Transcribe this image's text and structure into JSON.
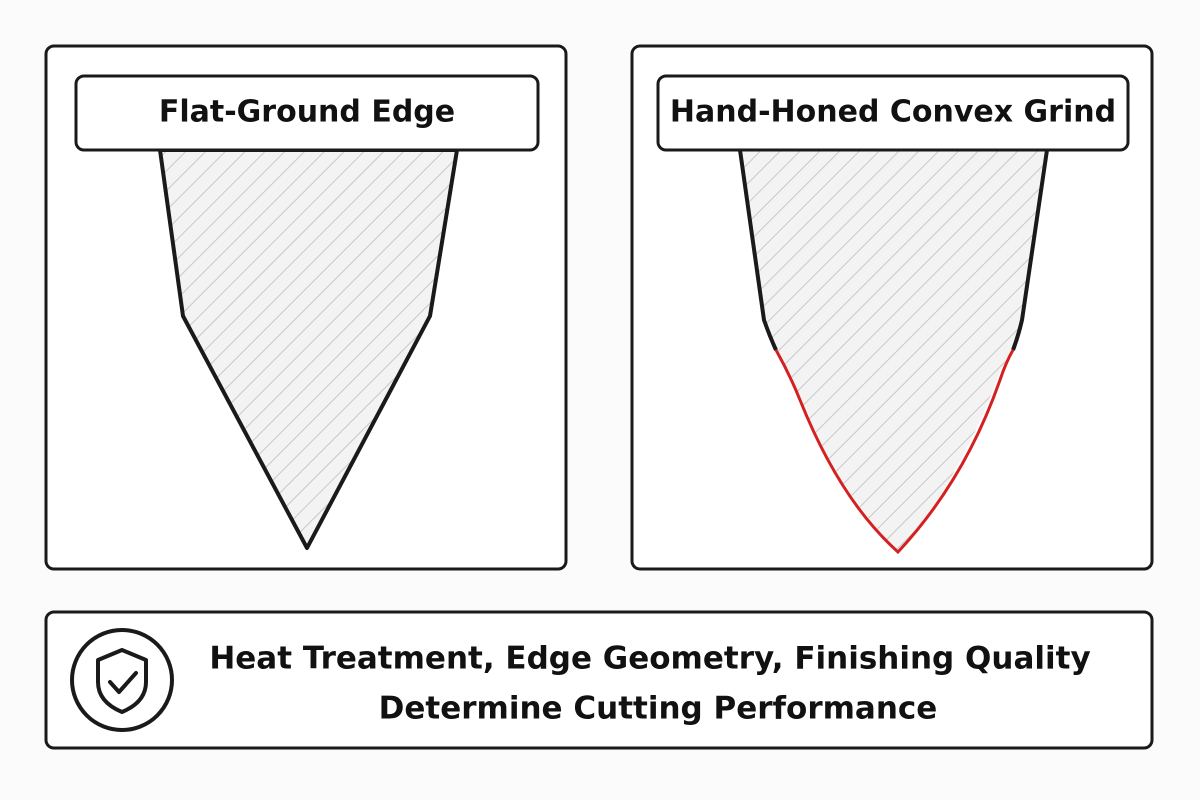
{
  "panels": [
    {
      "label": "Flat-Ground Edge"
    },
    {
      "label": "Hand-Honed Convex Grind"
    }
  ],
  "footer": {
    "lines": [
      "Heat Treatment, Edge Geometry, Finishing Quality",
      "Determine Cutting Performance"
    ]
  }
}
